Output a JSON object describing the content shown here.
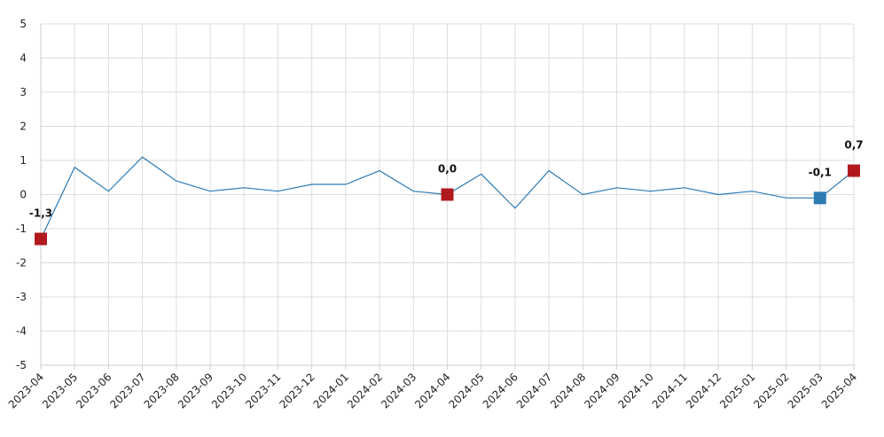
{
  "chart_data": {
    "type": "line",
    "x": [
      "2023-04",
      "2023-05",
      "2023-06",
      "2023-07",
      "2023-08",
      "2023-09",
      "2023-10",
      "2023-11",
      "2023-12",
      "2024-01",
      "2024-02",
      "2024-03",
      "2024-04",
      "2024-05",
      "2024-06",
      "2024-07",
      "2024-08",
      "2024-09",
      "2024-10",
      "2024-11",
      "2024-12",
      "2025-01",
      "2025-02",
      "2025-03",
      "2025-04"
    ],
    "series": [
      {
        "values": [
          -1.3,
          0.8,
          0.1,
          1.1,
          0.4,
          0.1,
          0.2,
          0.1,
          0.3,
          0.3,
          0.7,
          0.1,
          0.0,
          0.6,
          -0.4,
          0.7,
          0.0,
          0.2,
          0.1,
          0.2,
          0.0,
          0.1,
          -0.1,
          -0.1,
          0.7
        ],
        "color": "#2e7bb4"
      }
    ],
    "highlighted_points": [
      {
        "x": "2023-04",
        "value": -1.3,
        "label": "-1,3",
        "color": "#b0191e"
      },
      {
        "x": "2024-04",
        "value": 0.0,
        "label": "0,0",
        "color": "#b0191e"
      },
      {
        "x": "2025-03",
        "value": -0.1,
        "label": "-0,1",
        "color": "#2e7bb4"
      },
      {
        "x": "2025-04",
        "value": 0.7,
        "label": "0,7",
        "color": "#b0191e"
      }
    ],
    "ylim": [
      -5,
      5
    ],
    "yticks": [
      5,
      4,
      3,
      2,
      1,
      0,
      -1,
      -2,
      -3,
      -4,
      -5
    ],
    "ytick_labels": [
      "5",
      "4",
      "3",
      "2",
      "1",
      "0",
      "-1",
      "-2",
      "-3",
      "-4",
      "-5"
    ],
    "grid": true,
    "title": "",
    "xlabel": "",
    "ylabel": "",
    "gridline_color": "#dddddd",
    "axis_color": "#cccccc"
  }
}
